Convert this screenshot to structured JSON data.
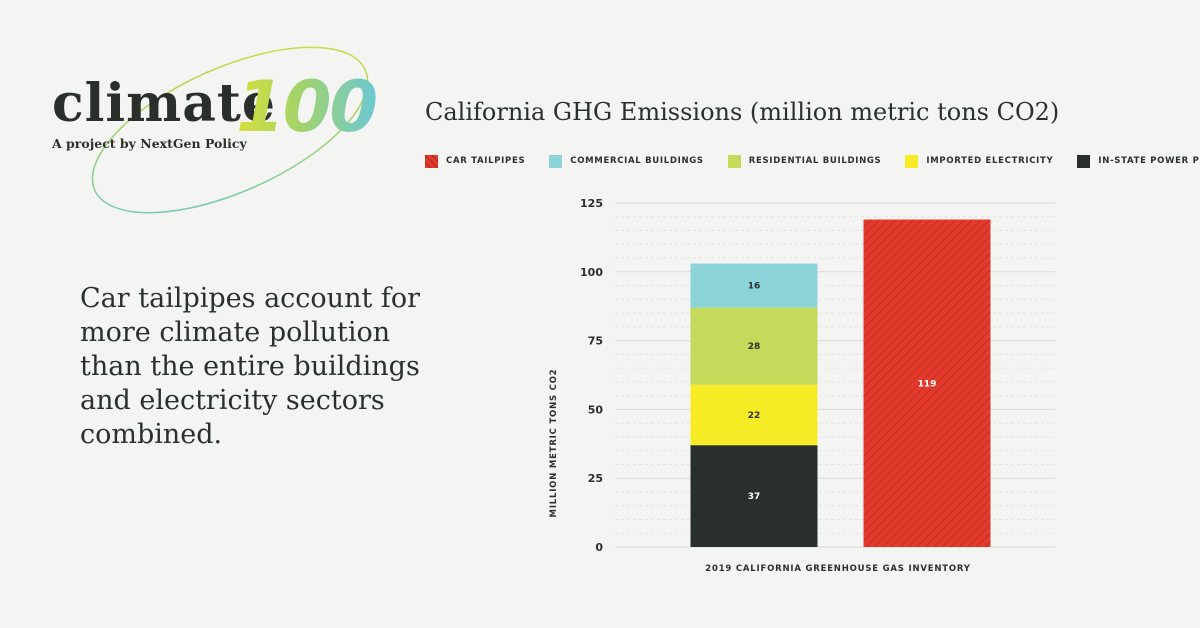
{
  "logo": {
    "word": "climate",
    "number": "100",
    "subtitle": "A project by NextGen Policy"
  },
  "headline": "Car tailpipes account for more climate pollution than the entire buildings and electricity sectors combined.",
  "colors": {
    "background": "#f4f5f3",
    "car_tailpipes": "#e23a2c",
    "commercial_buildings": "#8dd3da",
    "residential_buildings": "#c5d95a",
    "imported_electricity": "#f6eb24",
    "in_state_power_plants": "#282f2c"
  },
  "chart_data": {
    "type": "bar",
    "stacked": true,
    "title": "California GHG Emissions (million metric tons CO2)",
    "xlabel": "2019 California Greenhouse Gas Inventory",
    "ylabel": "Million metric tons CO2",
    "ylim": [
      0,
      125
    ],
    "yticks": [
      0,
      25,
      50,
      75,
      100,
      125
    ],
    "grid": true,
    "legend_position": "top",
    "legend": [
      {
        "name": "Car Tailpipes",
        "color": "#e23a2c"
      },
      {
        "name": "Commercial Buildings",
        "color": "#8dd3da"
      },
      {
        "name": "Residential Buildings",
        "color": "#c5d95a"
      },
      {
        "name": "Imported Electricity",
        "color": "#f6eb24"
      },
      {
        "name": "In-State Power Plants",
        "color": "#282f2c"
      }
    ],
    "bars": [
      {
        "segments": [
          {
            "series": "In-State Power Plants",
            "value": 37,
            "color": "#282f2c"
          },
          {
            "series": "Imported Electricity",
            "value": 22,
            "color": "#f6eb24"
          },
          {
            "series": "Residential Buildings",
            "value": 28,
            "color": "#c5d95a"
          },
          {
            "series": "Commercial Buildings",
            "value": 16,
            "color": "#8dd3da"
          }
        ]
      },
      {
        "segments": [
          {
            "series": "Car Tailpipes",
            "value": 119,
            "color": "#e23a2c"
          }
        ]
      }
    ]
  }
}
